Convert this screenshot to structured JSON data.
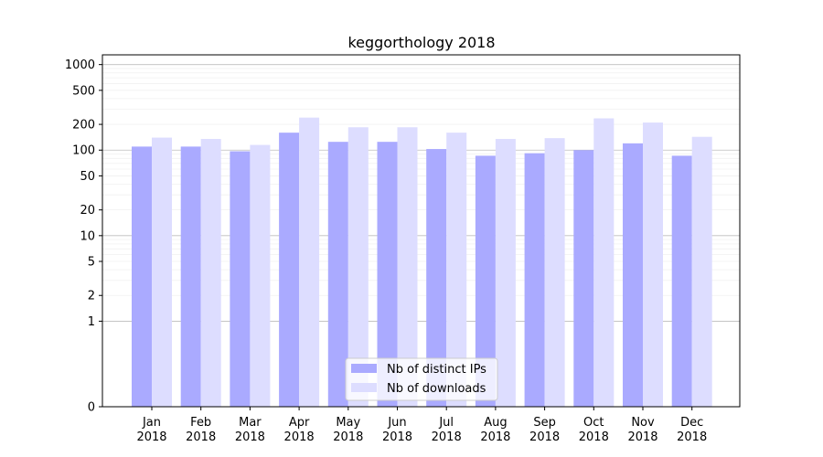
{
  "chart_data": {
    "type": "bar",
    "title": "keggorthology 2018",
    "xlabel": "",
    "ylabel": "",
    "yscale": "symlog",
    "ylim": [
      0,
      1300
    ],
    "yticks": [
      0,
      1,
      2,
      5,
      10,
      20,
      50,
      100,
      200,
      500,
      1000
    ],
    "categories": [
      "Jan\n2018",
      "Feb\n2018",
      "Mar\n2018",
      "Apr\n2018",
      "May\n2018",
      "Jun\n2018",
      "Jul\n2018",
      "Aug\n2018",
      "Sep\n2018",
      "Oct\n2018",
      "Nov\n2018",
      "Dec\n2018"
    ],
    "series": [
      {
        "name": "Nb of distinct IPs",
        "color": "#aaaaff",
        "values": [
          110,
          110,
          97,
          160,
          125,
          125,
          103,
          86,
          92,
          100,
          120,
          86
        ]
      },
      {
        "name": "Nb of downloads",
        "color": "#ddddff",
        "values": [
          140,
          135,
          115,
          240,
          185,
          185,
          160,
          135,
          138,
          235,
          210,
          143
        ]
      }
    ],
    "grid": true,
    "legend_position": "bottom-center"
  }
}
